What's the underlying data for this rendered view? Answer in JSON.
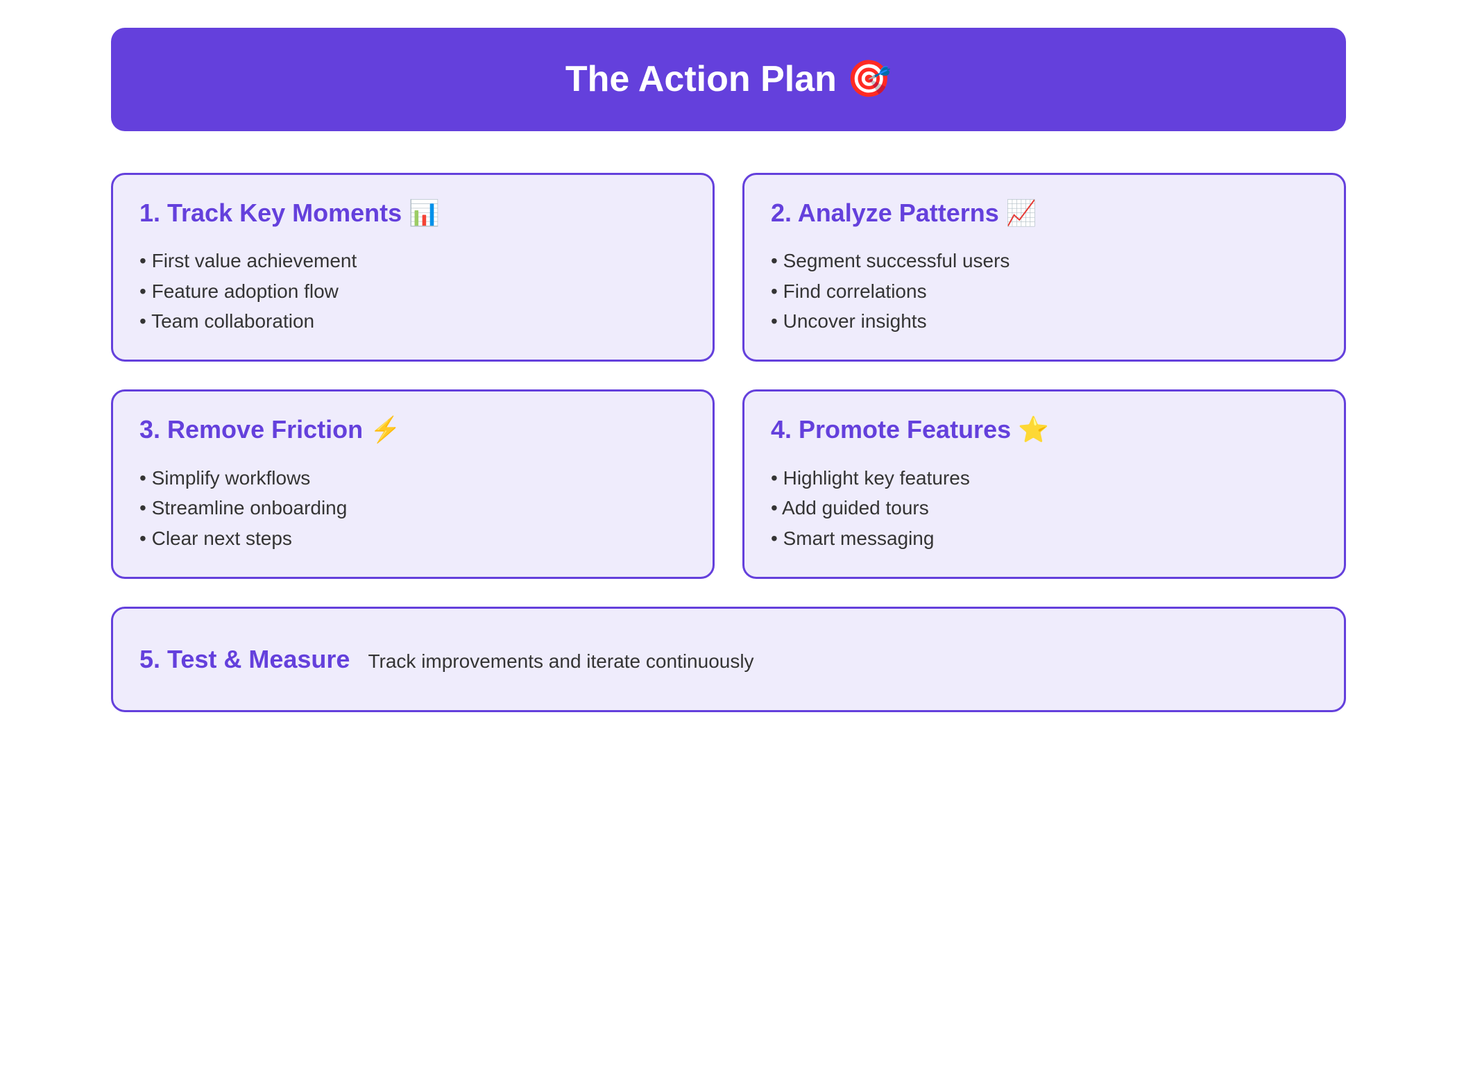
{
  "header": {
    "title": "The Action Plan 🎯"
  },
  "colors": {
    "accent": "#6440dc",
    "card_bg": "#efecfc",
    "card_border": "#6440dc",
    "text_body": "#343434",
    "page_bg": "#ffffff",
    "header_text": "#ffffff"
  },
  "layout": {
    "border_radius": 20,
    "border_width": 3,
    "grid_columns": 2,
    "grid_gap": 40,
    "header_fontsize": 52,
    "card_title_fontsize": 36,
    "body_fontsize": 28
  },
  "cards": [
    {
      "title": "1. Track Key Moments 📊",
      "bullets": [
        "First value achievement",
        "Feature adoption flow",
        "Team collaboration"
      ]
    },
    {
      "title": "2. Analyze Patterns 📈",
      "bullets": [
        "Segment successful users",
        "Find correlations",
        "Uncover insights"
      ]
    },
    {
      "title": "3. Remove Friction ⚡",
      "bullets": [
        "Simplify workflows",
        "Streamline onboarding",
        "Clear next steps"
      ]
    },
    {
      "title": "4. Promote Features ⭐",
      "bullets": [
        "Highlight key features",
        "Add guided tours",
        "Smart messaging"
      ]
    }
  ],
  "bottom": {
    "title": "5. Test & Measure",
    "description": "Track improvements and iterate continuously"
  }
}
